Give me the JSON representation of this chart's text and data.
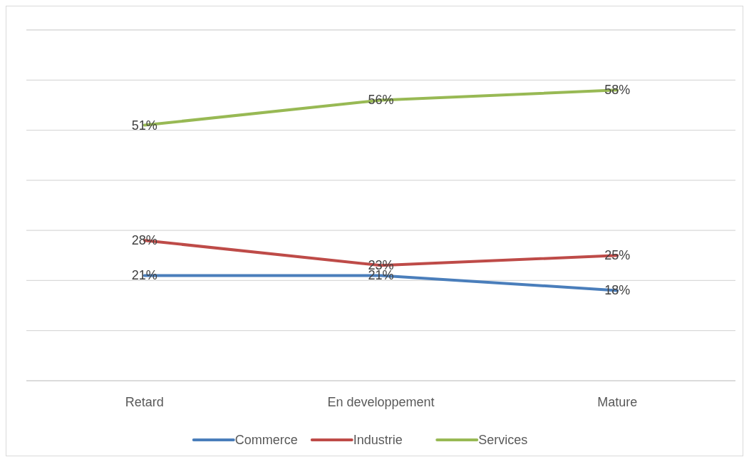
{
  "chart_data": {
    "type": "line",
    "categories": [
      "Retard",
      "En developpement",
      "Mature"
    ],
    "series": [
      {
        "name": "Commerce",
        "color": "#4a7ebb",
        "values": [
          21,
          21,
          18
        ],
        "value_labels": [
          "21%",
          "21%",
          "18%"
        ]
      },
      {
        "name": "Industrie",
        "color": "#be4b48",
        "values": [
          28,
          23,
          25
        ],
        "value_labels": [
          "28%",
          "23%",
          "25%"
        ]
      },
      {
        "name": "Services",
        "color": "#98b954",
        "values": [
          51,
          56,
          58
        ],
        "value_labels": [
          "51%",
          "56%",
          "58%"
        ]
      }
    ],
    "ylim": [
      0,
      70
    ],
    "yticks": [
      {
        "value": 0,
        "label": null
      },
      {
        "value": 10,
        "label": null
      },
      {
        "value": 20,
        "label": null
      },
      {
        "value": 30,
        "label": null
      },
      {
        "value": 40,
        "label": null
      },
      {
        "value": 50,
        "label": null
      },
      {
        "value": 60,
        "label": null
      },
      {
        "value": 70,
        "label": null
      }
    ],
    "grid": "y",
    "tick_labels": "x",
    "legend": "bottom",
    "marker": "none",
    "line_style": "solid"
  }
}
